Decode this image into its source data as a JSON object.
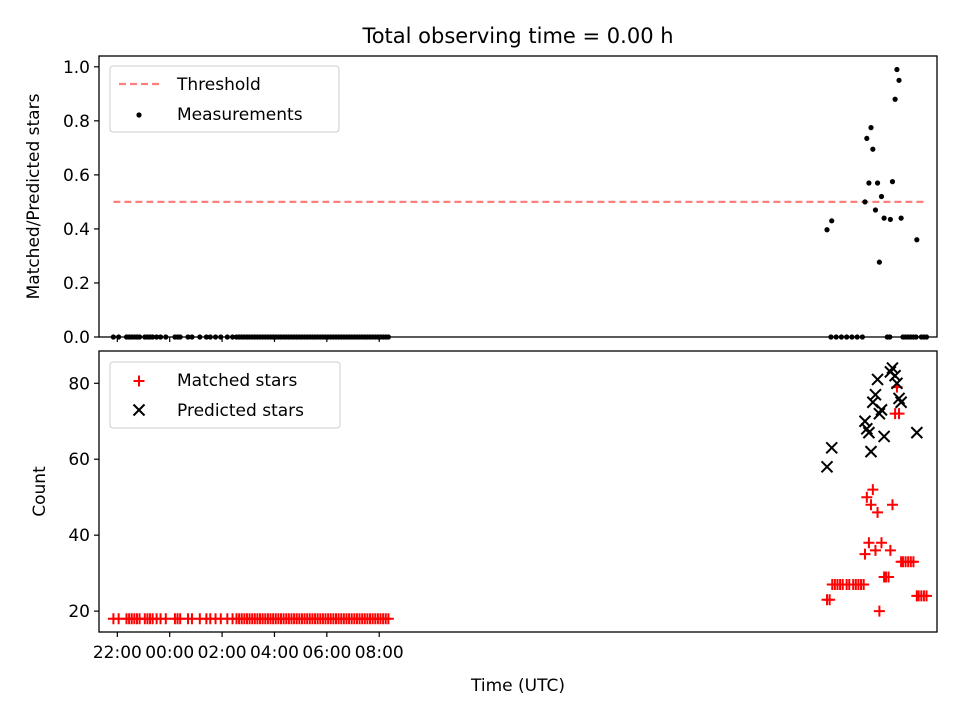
{
  "chart_data": {
    "title": "Total observing time = 0.00 h",
    "xlabel": "Time (UTC)",
    "xticks": [
      "22:00",
      "00:00",
      "02:00",
      "04:00",
      "06:00",
      "08:00"
    ],
    "xlim_hours": [
      -22.7,
      9.3
    ],
    "panels": [
      {
        "type": "scatter",
        "ylabel": "Matched/Predicted stars",
        "ylim": [
          0,
          1.04
        ],
        "yticks": [
          "0.0",
          "0.2",
          "0.4",
          "0.6",
          "0.8",
          "1.0"
        ],
        "legend_placement": "upper-left",
        "threshold": {
          "name": "Threshold",
          "value": 0.5,
          "x_range": [
            -22.15,
            8.9
          ],
          "color": "#ff7f7f",
          "style": "dashed"
        },
        "measurements": {
          "name": "Measurements",
          "color": "#000000",
          "zero_x": [
            -22.15,
            -21.95,
            -21.65,
            -21.55,
            -21.45,
            -21.35,
            -21.25,
            -21.15,
            -20.95,
            -20.85,
            -20.75,
            -20.65,
            -20.5,
            -20.35,
            -20.15,
            -19.8,
            -19.7,
            -19.6,
            -19.3,
            -19.15,
            -18.85,
            -18.6,
            -18.45,
            -18.25,
            -18.05,
            -17.8,
            -17.6,
            -17.45,
            -17.35,
            -17.25,
            -17.15,
            -17.05,
            -16.95,
            -16.85,
            -16.75,
            -16.65,
            -16.55,
            -16.45,
            -16.35,
            -16.25,
            -16.15,
            -16.05,
            -15.95,
            -15.85,
            -15.75,
            -15.65,
            -15.55,
            -15.45,
            -15.35,
            -15.25,
            -15.15,
            -15.05,
            -14.95,
            -14.85,
            -14.75,
            -14.65,
            -14.55,
            -14.45,
            -14.35,
            -14.25,
            -14.15,
            -14.05,
            -13.95,
            -13.85,
            -13.75,
            -13.65,
            -13.55,
            -13.45,
            -13.35,
            -13.25,
            -13.15,
            -13.05,
            -12.95,
            -12.85,
            -12.75,
            -12.65,
            -12.55,
            -12.45,
            -12.35,
            -12.25,
            -12.15,
            -12.05,
            -11.95,
            -11.85,
            -11.75,
            -11.65,
            5.25,
            5.45,
            5.65,
            5.85,
            6.05,
            6.25,
            6.45,
            7.4,
            7.5,
            8.0,
            8.1,
            8.2,
            8.3,
            8.4,
            8.5,
            8.7,
            8.8,
            8.9
          ],
          "points": [
            {
              "x": 5.1,
              "y": 0.397
            },
            {
              "x": 5.28,
              "y": 0.43
            },
            {
              "x": 6.55,
              "y": 0.5
            },
            {
              "x": 6.62,
              "y": 0.735
            },
            {
              "x": 6.7,
              "y": 0.57
            },
            {
              "x": 6.78,
              "y": 0.775
            },
            {
              "x": 6.85,
              "y": 0.695
            },
            {
              "x": 6.95,
              "y": 0.47
            },
            {
              "x": 7.03,
              "y": 0.57
            },
            {
              "x": 7.1,
              "y": 0.277
            },
            {
              "x": 7.18,
              "y": 0.52
            },
            {
              "x": 7.28,
              "y": 0.44
            },
            {
              "x": 7.52,
              "y": 0.435
            },
            {
              "x": 7.6,
              "y": 0.575
            },
            {
              "x": 7.7,
              "y": 0.88
            },
            {
              "x": 7.77,
              "y": 0.99
            },
            {
              "x": 7.85,
              "y": 0.95
            },
            {
              "x": 7.93,
              "y": 0.44
            },
            {
              "x": 8.53,
              "y": 0.36
            }
          ]
        }
      },
      {
        "type": "scatter",
        "ylabel": "Count",
        "ylim": [
          14.5,
          88.5
        ],
        "yticks": [
          "20",
          "40",
          "60",
          "80"
        ],
        "legend_placement": "upper-left",
        "series": [
          {
            "name": "Matched stars",
            "marker": "plus",
            "color": "#ff0000",
            "baseline": {
              "x": [
                -22.15,
                -21.95,
                -21.65,
                -21.55,
                -21.45,
                -21.35,
                -21.25,
                -21.15,
                -20.95,
                -20.85,
                -20.75,
                -20.65,
                -20.5,
                -20.35,
                -20.15,
                -19.8,
                -19.7,
                -19.6,
                -19.3,
                -19.15,
                -18.85,
                -18.6,
                -18.45,
                -18.25,
                -18.05,
                -17.8,
                -17.6,
                -17.45,
                -17.35,
                -17.25,
                -17.15,
                -17.05,
                -16.95,
                -16.85,
                -16.75,
                -16.65,
                -16.55,
                -16.45,
                -16.35,
                -16.25,
                -16.15,
                -16.05,
                -15.95,
                -15.85,
                -15.75,
                -15.65,
                -15.55,
                -15.45,
                -15.35,
                -15.25,
                -15.15,
                -15.05,
                -14.95,
                -14.85,
                -14.75,
                -14.65,
                -14.55,
                -14.45,
                -14.35,
                -14.25,
                -14.15,
                -14.05,
                -13.95,
                -13.85,
                -13.75,
                -13.65,
                -13.55,
                -13.45,
                -13.35,
                -13.25,
                -13.15,
                -13.05,
                -12.95,
                -12.85,
                -12.75,
                -12.65,
                -12.55,
                -12.45,
                -12.35,
                -12.25,
                -12.15,
                -12.05,
                -11.95,
                -11.85,
                -11.75,
                -11.65
              ],
              "value": 18
            },
            "points": [
              {
                "x": 5.1,
                "y": 23
              },
              {
                "x": 5.2,
                "y": 23
              },
              {
                "x": 5.3,
                "y": 27
              },
              {
                "x": 5.4,
                "y": 27
              },
              {
                "x": 5.5,
                "y": 27
              },
              {
                "x": 5.6,
                "y": 27
              },
              {
                "x": 5.7,
                "y": 27
              },
              {
                "x": 5.85,
                "y": 27
              },
              {
                "x": 5.95,
                "y": 27
              },
              {
                "x": 6.1,
                "y": 27
              },
              {
                "x": 6.2,
                "y": 27
              },
              {
                "x": 6.3,
                "y": 27
              },
              {
                "x": 6.4,
                "y": 27
              },
              {
                "x": 6.5,
                "y": 27
              },
              {
                "x": 6.55,
                "y": 35
              },
              {
                "x": 6.62,
                "y": 50
              },
              {
                "x": 6.7,
                "y": 38
              },
              {
                "x": 6.78,
                "y": 48
              },
              {
                "x": 6.85,
                "y": 52
              },
              {
                "x": 6.95,
                "y": 36
              },
              {
                "x": 7.03,
                "y": 46
              },
              {
                "x": 7.1,
                "y": 20
              },
              {
                "x": 7.18,
                "y": 38
              },
              {
                "x": 7.28,
                "y": 29
              },
              {
                "x": 7.35,
                "y": 29
              },
              {
                "x": 7.45,
                "y": 29
              },
              {
                "x": 7.52,
                "y": 36
              },
              {
                "x": 7.6,
                "y": 48
              },
              {
                "x": 7.7,
                "y": 72
              },
              {
                "x": 7.77,
                "y": 79
              },
              {
                "x": 7.85,
                "y": 72
              },
              {
                "x": 7.93,
                "y": 33
              },
              {
                "x": 8.0,
                "y": 33
              },
              {
                "x": 8.1,
                "y": 33
              },
              {
                "x": 8.2,
                "y": 33
              },
              {
                "x": 8.3,
                "y": 33
              },
              {
                "x": 8.4,
                "y": 33
              },
              {
                "x": 8.53,
                "y": 24
              },
              {
                "x": 8.6,
                "y": 24
              },
              {
                "x": 8.7,
                "y": 24
              },
              {
                "x": 8.8,
                "y": 24
              },
              {
                "x": 8.9,
                "y": 24
              }
            ]
          },
          {
            "name": "Predicted stars",
            "marker": "x",
            "color": "#000000",
            "points": [
              {
                "x": 5.1,
                "y": 58
              },
              {
                "x": 5.28,
                "y": 63
              },
              {
                "x": 6.55,
                "y": 70
              },
              {
                "x": 6.62,
                "y": 68
              },
              {
                "x": 6.7,
                "y": 67
              },
              {
                "x": 6.78,
                "y": 62
              },
              {
                "x": 6.85,
                "y": 75
              },
              {
                "x": 6.95,
                "y": 77
              },
              {
                "x": 7.03,
                "y": 81
              },
              {
                "x": 7.1,
                "y": 72
              },
              {
                "x": 7.18,
                "y": 73
              },
              {
                "x": 7.28,
                "y": 66
              },
              {
                "x": 7.52,
                "y": 83
              },
              {
                "x": 7.6,
                "y": 84
              },
              {
                "x": 7.7,
                "y": 82
              },
              {
                "x": 7.77,
                "y": 80
              },
              {
                "x": 7.85,
                "y": 76
              },
              {
                "x": 7.93,
                "y": 75
              },
              {
                "x": 8.53,
                "y": 67
              }
            ]
          }
        ]
      }
    ]
  }
}
